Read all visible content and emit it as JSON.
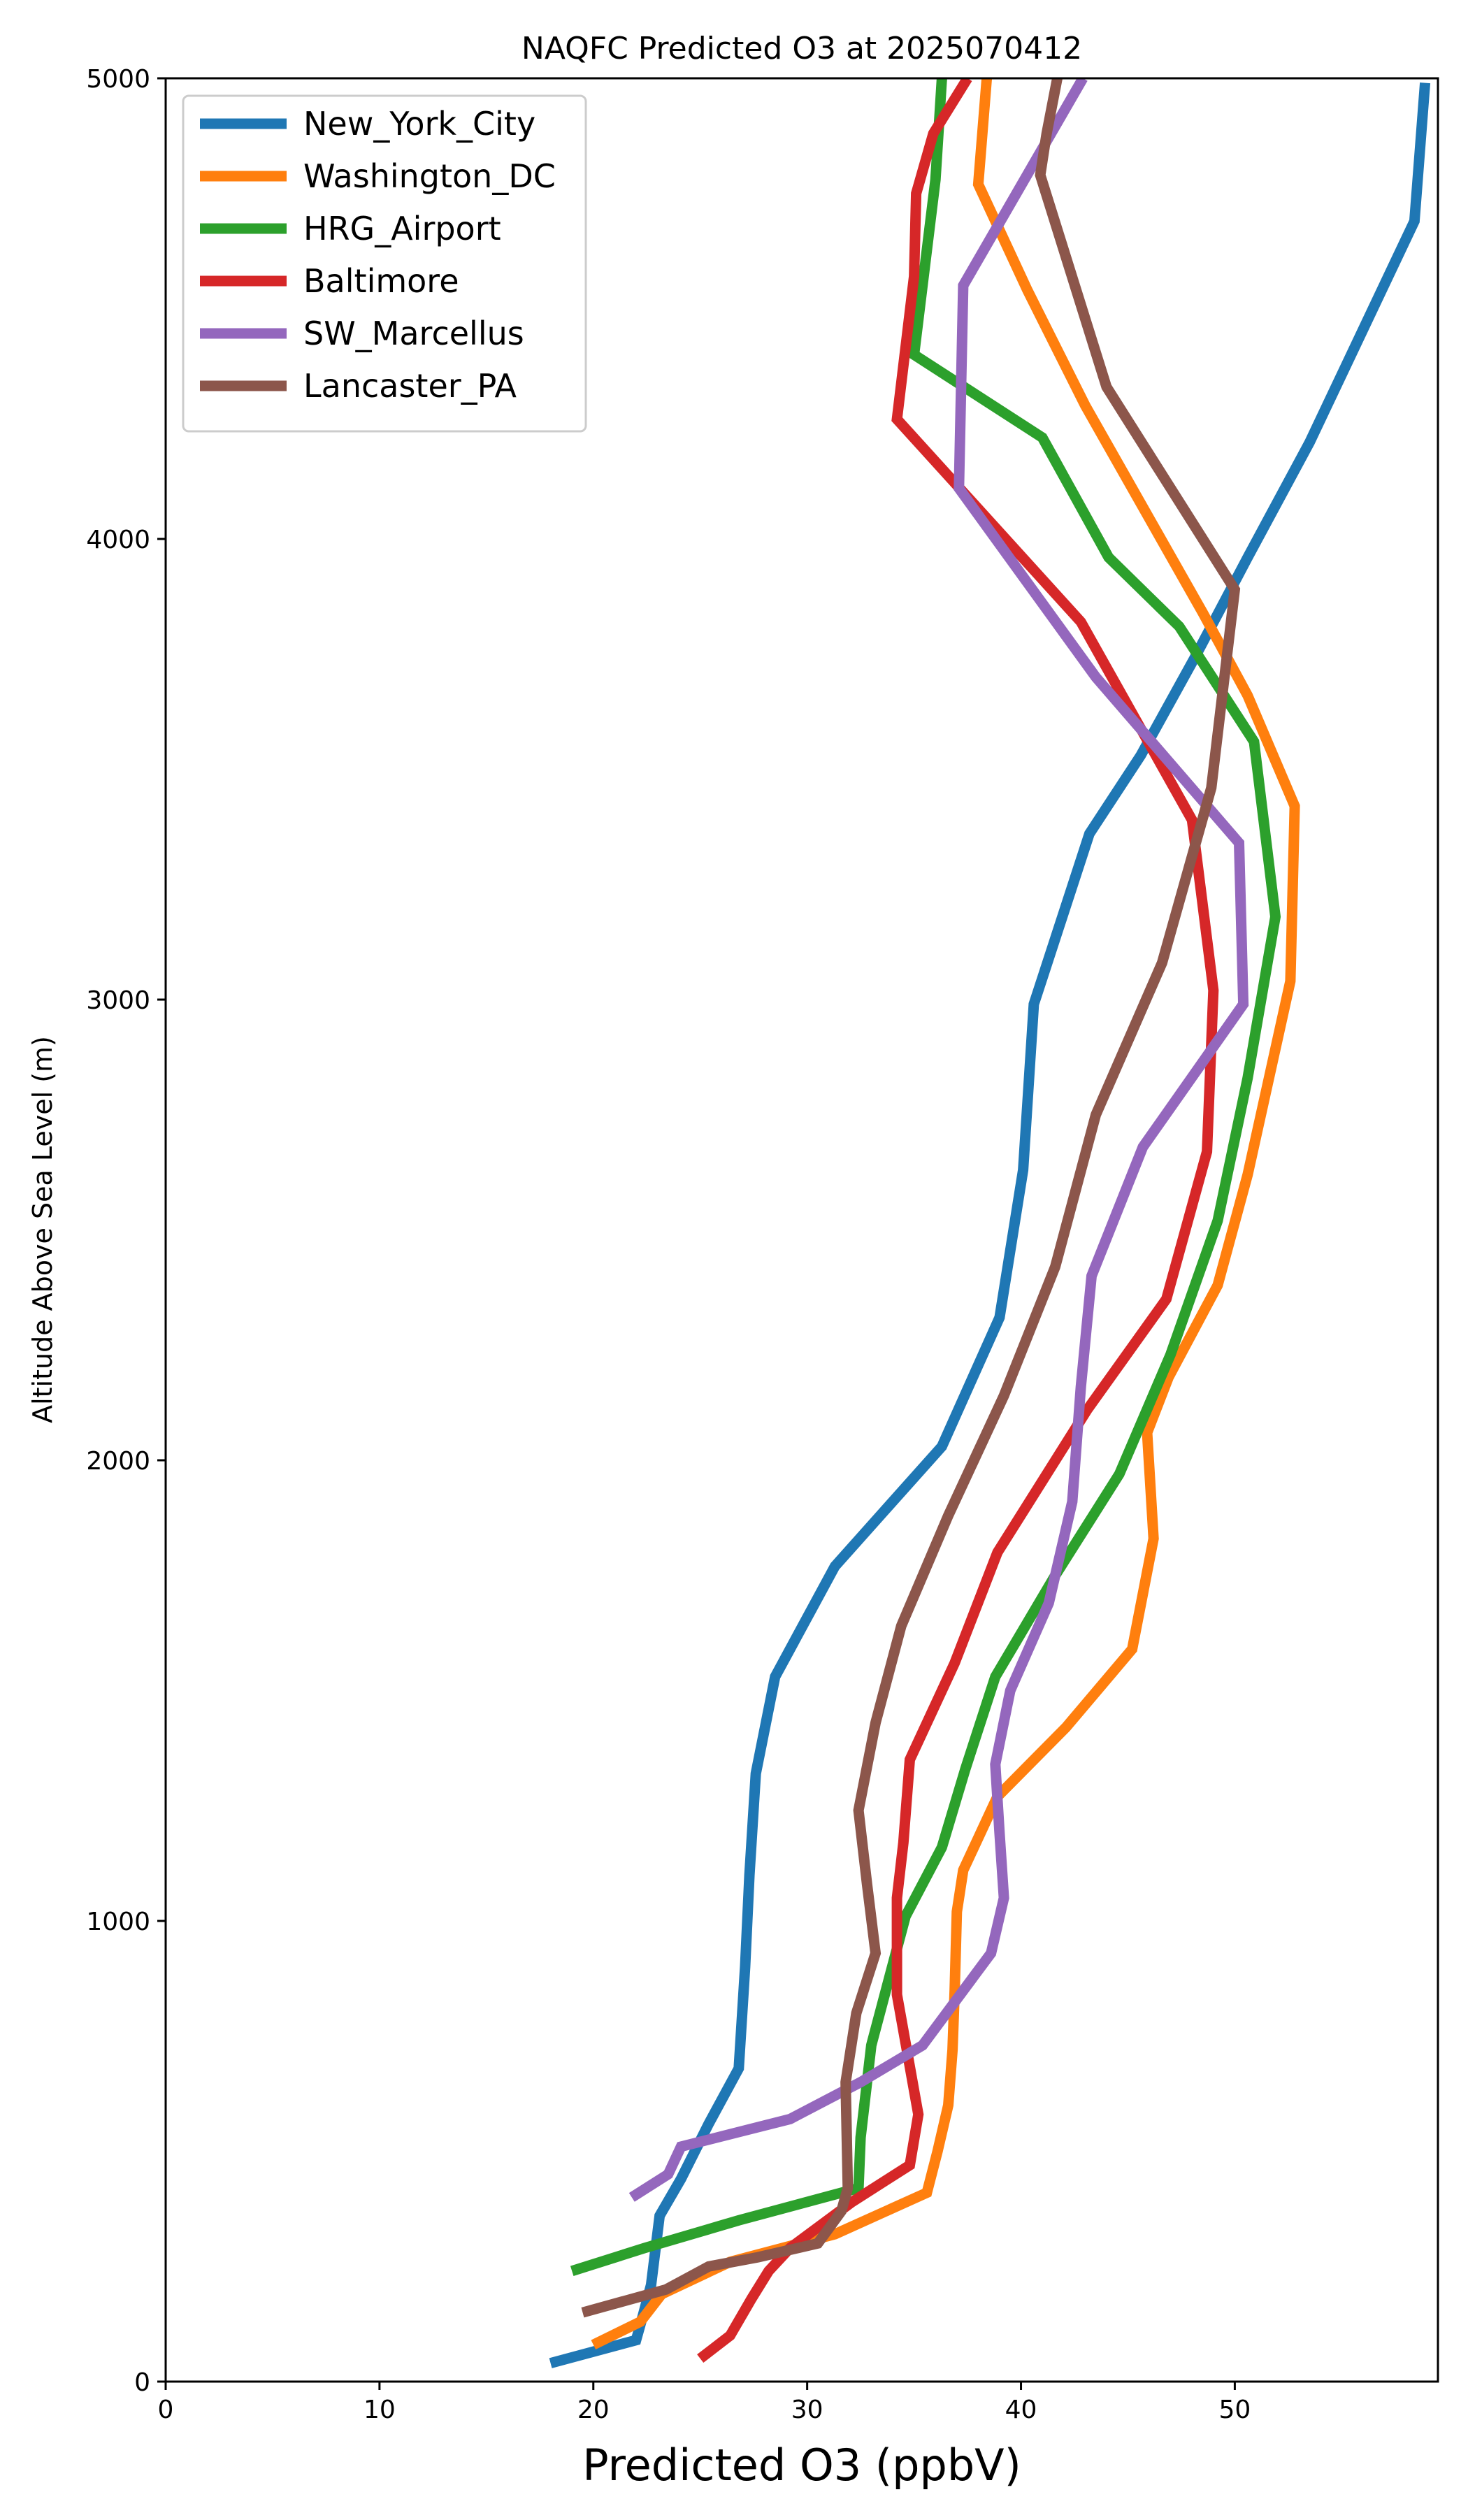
{
  "chart_data": {
    "type": "line",
    "title": "NAQFC Predicted O3 at 2025070412",
    "xlabel": "Predicted O3 (ppbV)",
    "ylabel": "Altitude Above Sea Level (m)",
    "xlim": [
      0,
      59.5
    ],
    "ylim": [
      0,
      5000
    ],
    "xticks": [
      0,
      10,
      20,
      30,
      40,
      50
    ],
    "yticks": [
      0,
      1000,
      2000,
      3000,
      4000,
      5000
    ],
    "grid": false,
    "legend_position": "upper-left",
    "series": [
      {
        "name": "New_York_City",
        "color": "#1f77b4",
        "x": [
          18.0,
          22.0,
          22.3,
          22.7,
          23.1,
          24.1,
          25.4,
          26.8,
          27.1,
          27.3,
          27.6,
          28.5,
          31.3,
          36.3,
          39.0,
          40.1,
          40.6,
          43.2,
          45.6,
          48.1,
          50.6,
          53.5,
          58.4,
          58.9
        ],
        "y": [
          40,
          90,
          140,
          210,
          360,
          440,
          560,
          680,
          900,
          1100,
          1320,
          1530,
          1770,
          2030,
          2310,
          2630,
          2990,
          3360,
          3530,
          3740,
          3960,
          4210,
          4690,
          4990
        ]
      },
      {
        "name": "Washington_DC",
        "color": "#ff7f0e",
        "x": [
          20.0,
          22.2,
          23.2,
          26.4,
          31.3,
          35.6,
          36.1,
          36.6,
          36.8,
          36.9,
          37.0,
          37.3,
          38.9,
          42.1,
          45.2,
          46.2,
          45.9,
          46.9,
          49.2,
          50.6,
          52.6,
          52.8,
          50.6,
          48.5,
          43.0,
          40.3,
          38.0,
          38.4
        ],
        "y": [
          80,
          130,
          190,
          260,
          320,
          410,
          500,
          600,
          720,
          850,
          1020,
          1110,
          1270,
          1420,
          1590,
          1830,
          2060,
          2180,
          2380,
          2620,
          3040,
          3420,
          3660,
          3840,
          4290,
          4540,
          4770,
          5000
        ]
      },
      {
        "name": "HRG_Airport",
        "color": "#2ca02c",
        "x": [
          19.0,
          22.4,
          26.8,
          32.4,
          32.5,
          33.0,
          34.6,
          36.3,
          37.4,
          38.8,
          41.6,
          44.6,
          47.0,
          49.2,
          50.6,
          51.9,
          50.9,
          47.4,
          44.1,
          41.0,
          35.0,
          36.0,
          36.3
        ],
        "y": [
          240,
          290,
          350,
          420,
          530,
          730,
          1010,
          1160,
          1330,
          1530,
          1750,
          1970,
          2230,
          2520,
          2830,
          3180,
          3560,
          3810,
          3960,
          4220,
          4400,
          4780,
          5000
        ]
      },
      {
        "name": "Baltimore",
        "color": "#d62728",
        "x": [
          25.0,
          26.4,
          27.4,
          28.2,
          29.2,
          32.1,
          34.8,
          35.2,
          34.2,
          34.2,
          34.5,
          34.8,
          36.9,
          38.9,
          43.1,
          46.8,
          48.7,
          49.0,
          48.0,
          42.8,
          34.2,
          35.0,
          35.1,
          35.9,
          37.5
        ],
        "y": [
          50,
          100,
          180,
          240,
          290,
          390,
          470,
          580,
          840,
          1050,
          1170,
          1350,
          1560,
          1800,
          2110,
          2350,
          2670,
          3020,
          3390,
          3820,
          4260,
          4570,
          4750,
          4880,
          5000
        ]
      },
      {
        "name": "SW_Marcellus",
        "color": "#9467bd",
        "x": [
          21.8,
          23.5,
          24.1,
          29.2,
          32.5,
          35.4,
          38.6,
          39.2,
          39.0,
          38.8,
          39.5,
          41.3,
          42.4,
          42.8,
          43.3,
          45.7,
          50.4,
          50.2,
          43.5,
          37.1,
          37.3,
          42.9
        ],
        "y": [
          400,
          450,
          510,
          570,
          650,
          730,
          930,
          1050,
          1190,
          1340,
          1500,
          1690,
          1910,
          2160,
          2400,
          2680,
          2990,
          3340,
          3700,
          4110,
          4550,
          5000
        ]
      },
      {
        "name": "Lancaster_PA",
        "color": "#8c564b",
        "x": [
          19.5,
          23.4,
          25.4,
          27.7,
          30.5,
          31.6,
          31.9,
          31.8,
          32.3,
          33.2,
          32.8,
          32.4,
          33.2,
          34.4,
          36.6,
          39.2,
          41.6,
          43.5,
          46.6,
          48.9,
          50.0,
          44.0,
          40.9,
          41.2,
          41.7
        ],
        "y": [
          150,
          200,
          250,
          270,
          300,
          370,
          420,
          650,
          800,
          930,
          1080,
          1240,
          1430,
          1640,
          1880,
          2140,
          2420,
          2750,
          3080,
          3460,
          3890,
          4330,
          4790,
          4880,
          5000
        ]
      }
    ]
  }
}
